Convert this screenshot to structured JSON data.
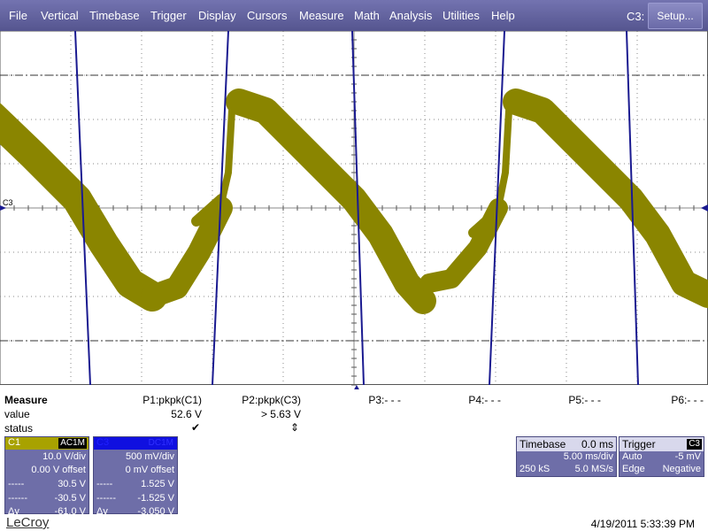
{
  "menu": {
    "items": [
      "File",
      "Vertical",
      "Timebase",
      "Trigger",
      "Display",
      "Cursors",
      "Measure",
      "Math",
      "Analysis",
      "Utilities",
      "Help"
    ],
    "channel": "C3:",
    "button": "Setup..."
  },
  "grid": {
    "channel_label": "C3"
  },
  "measure": {
    "title": "Measure",
    "row_labels": [
      "value",
      "status"
    ],
    "columns": [
      {
        "name": "P1:pkpk(C1)",
        "value": "52.6 V",
        "status": "✔"
      },
      {
        "name": "P2:pkpk(C3)",
        "value": "> 5.63 V",
        "status": "⇕"
      },
      {
        "name": "P3:- - -"
      },
      {
        "name": "P4:- - -"
      },
      {
        "name": "P5:- - -"
      },
      {
        "name": "P6:- - -"
      }
    ]
  },
  "channels": [
    {
      "name": "C1",
      "coupling": "AC1M",
      "scale": "10.0 V/div",
      "offset": "0.00 V offset",
      "rows": [
        {
          "label": "-----",
          "value": "30.5 V"
        },
        {
          "label": "------",
          "value": "-30.5 V"
        },
        {
          "label": "Δy",
          "value": "-61.0 V"
        }
      ]
    },
    {
      "name": "C3",
      "coupling": "DC1M",
      "scale": "500 mV/div",
      "offset": "0 mV offset",
      "rows": [
        {
          "label": "-----",
          "value": "1.525 V"
        },
        {
          "label": "------",
          "value": "-1.525 V"
        },
        {
          "label": "Δy",
          "value": "-3.050 V"
        }
      ]
    }
  ],
  "timebase": {
    "title": "Timebase",
    "delay": "0.0 ms",
    "scale": "5.00 ms/div",
    "samples": "250 kS",
    "rate": "5.0 MS/s"
  },
  "trigger": {
    "title": "Trigger",
    "source": "C3",
    "mode": "Auto",
    "level": "-5 mV",
    "type": "Edge",
    "slope": "Negative"
  },
  "footer": {
    "brand": "LeCroy",
    "timestamp": "4/19/2011 5:33:39 PM"
  }
}
